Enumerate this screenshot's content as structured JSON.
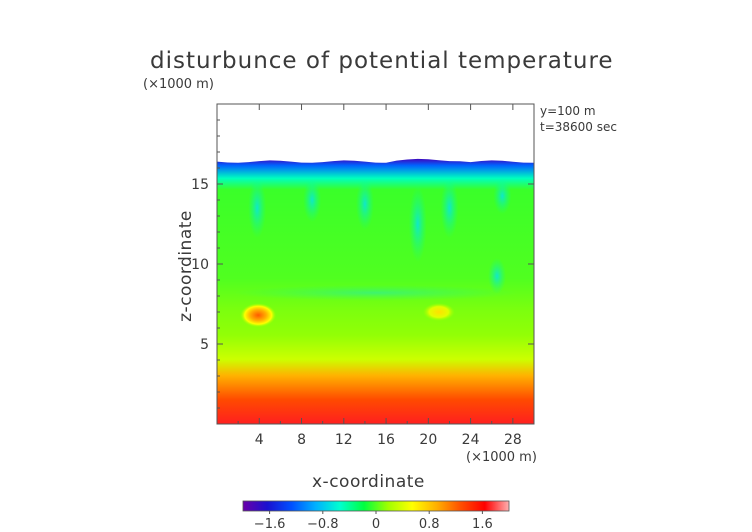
{
  "chart_data": {
    "type": "heatmap",
    "title": "disturbunce of potential temperature",
    "xlabel": "x-coordinate",
    "ylabel": "z-coordinate",
    "x_scale_label": "(×1000 m)",
    "z_scale_label": "(×1000 m)",
    "annotations": [
      "y=100 m",
      "t=38600 sec"
    ],
    "xlim": [
      0,
      30
    ],
    "ylim": [
      0,
      20
    ],
    "x_ticks": [
      4,
      8,
      12,
      16,
      20,
      24,
      28
    ],
    "y_ticks": [
      5,
      10,
      15
    ],
    "data_top_km": 16.4,
    "colorbar": {
      "range": [
        -2.0,
        2.0
      ],
      "ticks": [
        "−1.6",
        "−0.8",
        "0",
        "0.8",
        "1.6"
      ],
      "tick_values": [
        -1.6,
        -0.8,
        0,
        0.8,
        1.6
      ],
      "colors": [
        "#6a00a8",
        "#1a10d0",
        "#0050ff",
        "#00b0ff",
        "#00ffd0",
        "#00ff40",
        "#a0ff00",
        "#ffff00",
        "#ffb000",
        "#ff5000",
        "#ff0000",
        "#ffb0b0"
      ]
    },
    "vertical_profile": [
      {
        "z": 0,
        "value": 1.7
      },
      {
        "z": 1.5,
        "value": 1.3
      },
      {
        "z": 3,
        "value": 0.9
      },
      {
        "z": 4,
        "value": 0.35
      },
      {
        "z": 5.5,
        "value": 0.15
      },
      {
        "z": 7,
        "value": 0.1
      },
      {
        "z": 9,
        "value": 0.0
      },
      {
        "z": 14.5,
        "value": -0.05
      },
      {
        "z": 15.2,
        "value": -0.5
      },
      {
        "z": 16.0,
        "value": -1.2
      },
      {
        "z": 16.4,
        "value": -1.8
      }
    ],
    "features": [
      {
        "x": 3.9,
        "z": 6.8,
        "value": 1.2
      },
      {
        "x": 21.0,
        "z": 7.0,
        "value": 0.9
      }
    ]
  }
}
